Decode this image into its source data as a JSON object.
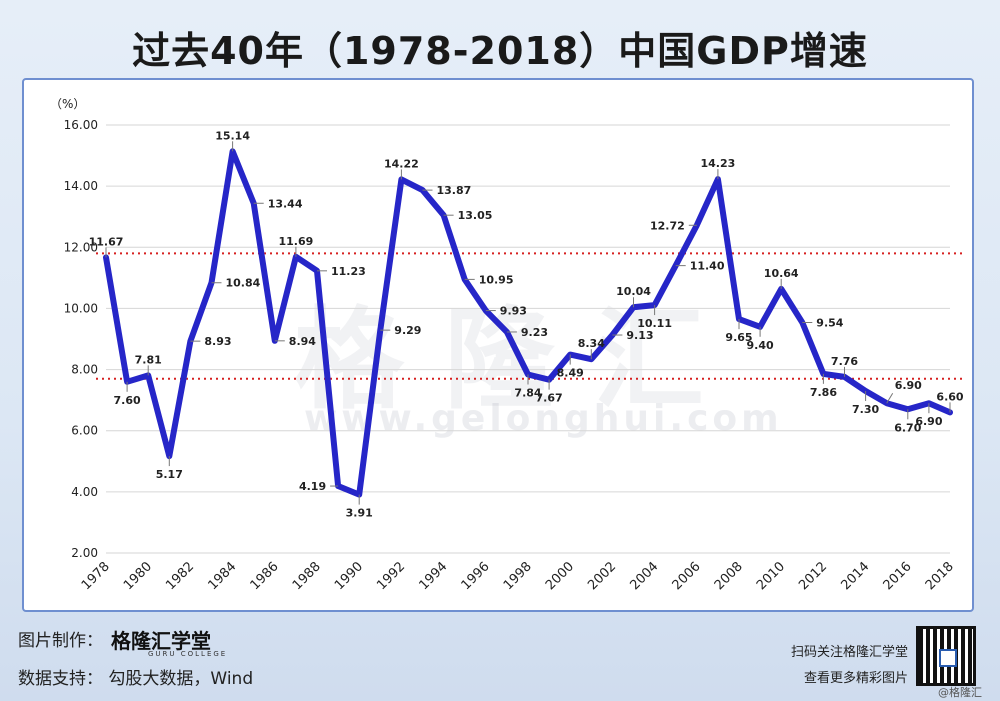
{
  "title": "过去40年（1978-2018）中国GDP增速",
  "watermark": {
    "cn": "格隆汇",
    "url": "www.gelonghui.com"
  },
  "footer": {
    "credit_label": "图片制作：",
    "credit_brand": "格隆汇学堂",
    "credit_brand_sub": "GURU COLLEGE",
    "source_line": "数据支持：  勾股大数据，Wind",
    "qr_line1": "扫码关注格隆汇学堂",
    "qr_line2": "查看更多精彩图片",
    "corner_mark": "@格隆汇"
  },
  "colors": {
    "line": "#2626c8",
    "reference": "#d62020",
    "grid": "#d6d6d6"
  },
  "chart_data": {
    "type": "line",
    "title": "过去40年（1978-2018）中国GDP增速",
    "ylabel": "（%）",
    "ylim": [
      2,
      16
    ],
    "yticks": [
      "2.00",
      "4.00",
      "6.00",
      "8.00",
      "10.00",
      "12.00",
      "14.00",
      "16.00"
    ],
    "xlim": [
      1978,
      2018
    ],
    "xticks": [
      "1978",
      "1980",
      "1982",
      "1984",
      "1986",
      "1988",
      "1990",
      "1992",
      "1994",
      "1996",
      "1998",
      "2000",
      "2002",
      "2004",
      "2006",
      "2008",
      "2010",
      "2012",
      "2014",
      "2016",
      "2018"
    ],
    "x": [
      1978,
      1979,
      1980,
      1981,
      1982,
      1983,
      1984,
      1985,
      1986,
      1987,
      1988,
      1989,
      1990,
      1991,
      1992,
      1993,
      1994,
      1995,
      1996,
      1997,
      1998,
      1999,
      2000,
      2001,
      2002,
      2003,
      2004,
      2005,
      2006,
      2007,
      2008,
      2009,
      2010,
      2011,
      2012,
      2013,
      2014,
      2015,
      2016,
      2017,
      2018
    ],
    "values": [
      11.67,
      7.6,
      7.81,
      5.17,
      8.93,
      10.84,
      15.14,
      13.44,
      8.94,
      11.69,
      11.23,
      4.19,
      3.91,
      9.29,
      14.22,
      13.87,
      13.05,
      10.95,
      9.93,
      9.23,
      7.84,
      7.67,
      8.49,
      8.34,
      9.13,
      10.04,
      10.11,
      11.4,
      12.72,
      14.23,
      9.65,
      9.4,
      10.64,
      9.54,
      7.86,
      7.76,
      7.3,
      6.9,
      6.7,
      6.9,
      6.6
    ],
    "labels": [
      {
        "year": 1978,
        "text": "11.67",
        "pos": "above"
      },
      {
        "year": 1979,
        "text": "7.60",
        "pos": "below"
      },
      {
        "year": 1980,
        "text": "7.81",
        "pos": "above"
      },
      {
        "year": 1981,
        "text": "5.17",
        "pos": "below"
      },
      {
        "year": 1982,
        "text": "8.93",
        "pos": "right"
      },
      {
        "year": 1983,
        "text": "10.84",
        "pos": "right"
      },
      {
        "year": 1984,
        "text": "15.14",
        "pos": "above"
      },
      {
        "year": 1985,
        "text": "13.44",
        "pos": "right"
      },
      {
        "year": 1986,
        "text": "8.94",
        "pos": "right"
      },
      {
        "year": 1987,
        "text": "11.69",
        "pos": "above"
      },
      {
        "year": 1988,
        "text": "11.23",
        "pos": "right"
      },
      {
        "year": 1989,
        "text": "4.19",
        "pos": "left"
      },
      {
        "year": 1990,
        "text": "3.91",
        "pos": "below"
      },
      {
        "year": 1991,
        "text": "9.29",
        "pos": "right"
      },
      {
        "year": 1992,
        "text": "14.22",
        "pos": "above"
      },
      {
        "year": 1993,
        "text": "13.87",
        "pos": "right"
      },
      {
        "year": 1994,
        "text": "13.05",
        "pos": "right"
      },
      {
        "year": 1995,
        "text": "10.95",
        "pos": "right"
      },
      {
        "year": 1996,
        "text": "9.93",
        "pos": "right"
      },
      {
        "year": 1997,
        "text": "9.23",
        "pos": "right"
      },
      {
        "year": 1998,
        "text": "7.84",
        "pos": "below"
      },
      {
        "year": 1999,
        "text": "7.67",
        "pos": "below"
      },
      {
        "year": 2000,
        "text": "8.49",
        "pos": "below"
      },
      {
        "year": 2001,
        "text": "8.34",
        "pos": "above"
      },
      {
        "year": 2002,
        "text": "9.13",
        "pos": "right"
      },
      {
        "year": 2003,
        "text": "10.04",
        "pos": "above"
      },
      {
        "year": 2004,
        "text": "10.11",
        "pos": "below"
      },
      {
        "year": 2005,
        "text": "11.40",
        "pos": "right"
      },
      {
        "year": 2006,
        "text": "12.72",
        "pos": "left"
      },
      {
        "year": 2007,
        "text": "14.23",
        "pos": "above"
      },
      {
        "year": 2008,
        "text": "9.65",
        "pos": "below"
      },
      {
        "year": 2009,
        "text": "9.40",
        "pos": "below"
      },
      {
        "year": 2010,
        "text": "10.64",
        "pos": "above"
      },
      {
        "year": 2011,
        "text": "9.54",
        "pos": "right"
      },
      {
        "year": 2012,
        "text": "7.86",
        "pos": "below"
      },
      {
        "year": 2013,
        "text": "7.76",
        "pos": "above"
      },
      {
        "year": 2014,
        "text": "7.30",
        "pos": "below"
      },
      {
        "year": 2015,
        "text": "6.90",
        "pos": "aboveright"
      },
      {
        "year": 2016,
        "text": "6.70",
        "pos": "below"
      },
      {
        "year": 2017,
        "text": "6.90",
        "pos": "below"
      },
      {
        "year": 2018,
        "text": "6.60",
        "pos": "above"
      }
    ],
    "reference_lines": [
      11.8,
      7.7
    ],
    "grid": true,
    "legend": "none"
  }
}
